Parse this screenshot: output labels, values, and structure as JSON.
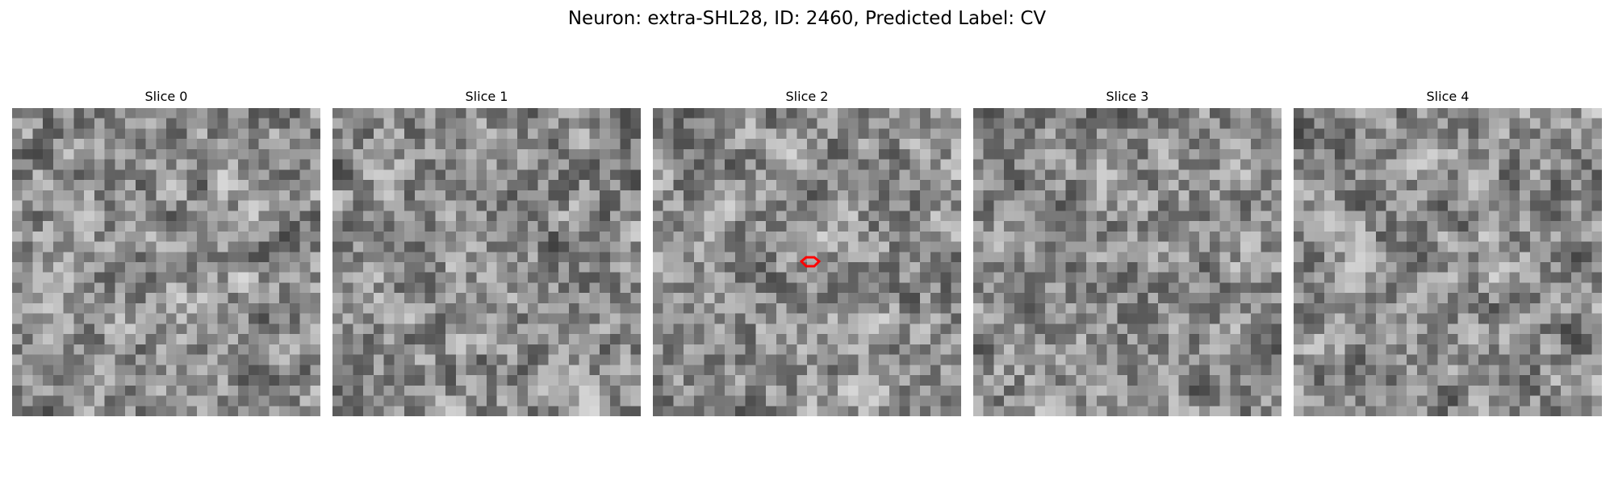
{
  "figure": {
    "title": "Neuron: extra-SHL28, ID: 2460, Predicted Label: CV"
  },
  "slices": [
    {
      "label": "Slice 0",
      "seed": 11,
      "has_marker": false
    },
    {
      "label": "Slice 1",
      "seed": 23,
      "has_marker": false
    },
    {
      "label": "Slice 2",
      "seed": 37,
      "has_marker": true
    },
    {
      "label": "Slice 3",
      "seed": 53,
      "has_marker": false
    },
    {
      "label": "Slice 4",
      "seed": 71,
      "has_marker": false
    }
  ],
  "colors": {
    "marker": "#ff0000",
    "background": "#ffffff"
  }
}
